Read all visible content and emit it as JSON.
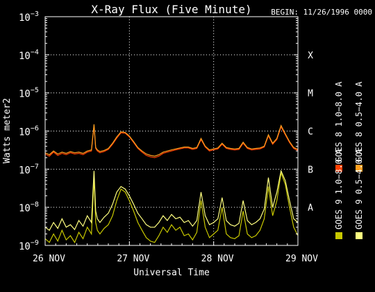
{
  "chart_data": {
    "type": "line",
    "title": "X-Ray Flux (Five Minute)",
    "begin_label": "BEGIN: 11/26/1996 0000",
    "xlabel": "Universal Time",
    "ylabel": "Watts meter2",
    "y_scale": "log",
    "ylim": [
      1e-09,
      0.001
    ],
    "xlim": [
      0,
      3
    ],
    "y_ticks": [
      {
        "mantissa": "10",
        "exp": "−3",
        "value": 0.001
      },
      {
        "mantissa": "10",
        "exp": "−4",
        "value": 0.0001
      },
      {
        "mantissa": "10",
        "exp": "−5",
        "value": 1e-05
      },
      {
        "mantissa": "10",
        "exp": "−6",
        "value": 1e-06
      },
      {
        "mantissa": "10",
        "exp": "−7",
        "value": 1e-07
      },
      {
        "mantissa": "10",
        "exp": "−8",
        "value": 1e-08
      },
      {
        "mantissa": "10",
        "exp": "−9",
        "value": 1e-09
      }
    ],
    "x_ticks": [
      {
        "label": "26 NOV",
        "value": 0
      },
      {
        "label": "27 NOV",
        "value": 1
      },
      {
        "label": "28 NOV",
        "value": 2
      },
      {
        "label": "29 NOV",
        "value": 3
      }
    ],
    "flare_classes": [
      {
        "label": "X",
        "value": 0.0001
      },
      {
        "label": "M",
        "value": 1e-05
      },
      {
        "label": "C",
        "value": 1e-06
      },
      {
        "label": "B",
        "value": 1e-07
      },
      {
        "label": "A",
        "value": 1e-08
      }
    ],
    "legend": [
      {
        "label": "GOES 8 1.0−8.0 A",
        "color": "#ff4000"
      },
      {
        "label": "GOES 8 0.5−4.0 A",
        "color": "#ffa020"
      },
      {
        "label": "GOES 9 1.0−8.0 A",
        "color": "#c8c800"
      },
      {
        "label": "GOES 9 0.5−4.0 A",
        "color": "#ffff80"
      }
    ],
    "grid": true,
    "series": [
      {
        "color": "#ff4000",
        "x": [
          0,
          0.05,
          0.1,
          0.15,
          0.2,
          0.25,
          0.3,
          0.35,
          0.4,
          0.45,
          0.5,
          0.55,
          0.58,
          0.6,
          0.62,
          0.65,
          0.7,
          0.75,
          0.8,
          0.85,
          0.9,
          0.95,
          1.0,
          1.05,
          1.1,
          1.15,
          1.2,
          1.25,
          1.3,
          1.35,
          1.4,
          1.45,
          1.5,
          1.55,
          1.6,
          1.65,
          1.7,
          1.75,
          1.8,
          1.85,
          1.9,
          1.95,
          2.0,
          2.05,
          2.1,
          2.15,
          2.2,
          2.25,
          2.3,
          2.35,
          2.4,
          2.45,
          2.5,
          2.55,
          2.6,
          2.65,
          2.7,
          2.75,
          2.8,
          2.85,
          2.9,
          2.95,
          3.0
        ],
        "y": [
          2.5e-07,
          2.2e-07,
          2.8e-07,
          2.3e-07,
          2.6e-07,
          2.4e-07,
          2.7e-07,
          2.5e-07,
          2.6e-07,
          2.4e-07,
          2.8e-07,
          3e-07,
          1.4e-06,
          3.5e-07,
          3e-07,
          2.7e-07,
          2.9e-07,
          3.3e-07,
          4.5e-07,
          6.5e-07,
          9e-07,
          8.8e-07,
          7e-07,
          5e-07,
          3.5e-07,
          2.8e-07,
          2.3e-07,
          2.1e-07,
          2e-07,
          2.2e-07,
          2.6e-07,
          2.8e-07,
          3e-07,
          3.2e-07,
          3.4e-07,
          3.6e-07,
          3.6e-07,
          3.3e-07,
          3.5e-07,
          6e-07,
          3.8e-07,
          3e-07,
          3.2e-07,
          3.4e-07,
          4.5e-07,
          3.5e-07,
          3.3e-07,
          3.2e-07,
          3.3e-07,
          4.8e-07,
          3.5e-07,
          3.2e-07,
          3.3e-07,
          3.4e-07,
          3.8e-07,
          7.5e-07,
          4.5e-07,
          6e-07,
          1.3e-06,
          8e-07,
          5e-07,
          3.5e-07,
          3.1e-07
        ]
      },
      {
        "color": "#ffa020",
        "x": [
          0,
          0.05,
          0.1,
          0.15,
          0.2,
          0.25,
          0.3,
          0.35,
          0.4,
          0.45,
          0.5,
          0.55,
          0.58,
          0.6,
          0.62,
          0.65,
          0.7,
          0.75,
          0.8,
          0.85,
          0.9,
          0.95,
          1.0,
          1.05,
          1.1,
          1.15,
          1.2,
          1.25,
          1.3,
          1.35,
          1.4,
          1.45,
          1.5,
          1.55,
          1.6,
          1.65,
          1.7,
          1.75,
          1.8,
          1.85,
          1.9,
          1.95,
          2.0,
          2.05,
          2.1,
          2.15,
          2.2,
          2.25,
          2.3,
          2.35,
          2.4,
          2.45,
          2.5,
          2.55,
          2.6,
          2.65,
          2.7,
          2.75,
          2.8,
          2.85,
          2.9,
          2.95,
          3.0
        ],
        "y": [
          2.7e-07,
          2.4e-07,
          3e-07,
          2.5e-07,
          2.8e-07,
          2.6e-07,
          2.9e-07,
          2.7e-07,
          2.8e-07,
          2.6e-07,
          3e-07,
          3.2e-07,
          1.5e-06,
          3.7e-07,
          3.2e-07,
          2.9e-07,
          3.1e-07,
          3.5e-07,
          4.8e-07,
          7e-07,
          9.5e-07,
          9.2e-07,
          7.4e-07,
          5.3e-07,
          3.7e-07,
          3e-07,
          2.5e-07,
          2.3e-07,
          2.2e-07,
          2.4e-07,
          2.8e-07,
          3e-07,
          3.2e-07,
          3.4e-07,
          3.6e-07,
          3.8e-07,
          3.8e-07,
          3.5e-07,
          3.7e-07,
          6.4e-07,
          4e-07,
          3.2e-07,
          3.4e-07,
          3.6e-07,
          4.8e-07,
          3.7e-07,
          3.5e-07,
          3.4e-07,
          3.5e-07,
          5.1e-07,
          3.7e-07,
          3.4e-07,
          3.5e-07,
          3.6e-07,
          4e-07,
          8e-07,
          4.8e-07,
          6.4e-07,
          1.4e-06,
          8.5e-07,
          5.3e-07,
          3.7e-07,
          3.3e-07
        ]
      },
      {
        "color": "#c8c800",
        "x": [
          0,
          0.05,
          0.1,
          0.15,
          0.2,
          0.25,
          0.3,
          0.35,
          0.4,
          0.45,
          0.5,
          0.55,
          0.58,
          0.6,
          0.62,
          0.65,
          0.7,
          0.75,
          0.8,
          0.85,
          0.9,
          0.95,
          1.0,
          1.05,
          1.1,
          1.15,
          1.2,
          1.25,
          1.3,
          1.35,
          1.4,
          1.45,
          1.5,
          1.55,
          1.6,
          1.65,
          1.7,
          1.75,
          1.8,
          1.85,
          1.9,
          1.95,
          2.0,
          2.05,
          2.1,
          2.15,
          2.2,
          2.25,
          2.3,
          2.35,
          2.4,
          2.45,
          2.5,
          2.55,
          2.6,
          2.65,
          2.7,
          2.75,
          2.8,
          2.85,
          2.9,
          2.95,
          3.0
        ],
        "y": [
          1.5e-09,
          1.2e-09,
          2e-09,
          1.3e-09,
          2.5e-09,
          1.4e-09,
          1.8e-09,
          1.2e-09,
          2.2e-09,
          1.5e-09,
          3e-09,
          2e-09,
          6e-08,
          4e-09,
          2.5e-09,
          2e-09,
          2.8e-09,
          3.5e-09,
          6e-09,
          1.5e-08,
          3e-08,
          2.5e-08,
          1.5e-08,
          8e-09,
          4e-09,
          2.5e-09,
          1.6e-09,
          1.3e-09,
          1.2e-09,
          1.8e-09,
          3e-09,
          2.2e-09,
          3.5e-09,
          2.5e-09,
          3e-09,
          1.8e-09,
          2e-09,
          1.4e-09,
          2.2e-09,
          1.5e-08,
          3e-09,
          1.6e-09,
          2e-09,
          2.5e-09,
          1e-08,
          2e-09,
          1.6e-09,
          1.5e-09,
          1.8e-09,
          8e-09,
          2e-09,
          1.6e-09,
          1.8e-09,
          2.5e-09,
          5e-09,
          3.5e-08,
          6e-09,
          1.5e-08,
          8e-08,
          4e-08,
          1e-08,
          3e-09,
          1.8e-09
        ]
      },
      {
        "color": "#ffff80",
        "x": [
          0,
          0.05,
          0.1,
          0.15,
          0.2,
          0.25,
          0.3,
          0.35,
          0.4,
          0.45,
          0.5,
          0.55,
          0.58,
          0.6,
          0.62,
          0.65,
          0.7,
          0.75,
          0.8,
          0.85,
          0.9,
          0.95,
          1.0,
          1.05,
          1.1,
          1.15,
          1.2,
          1.25,
          1.3,
          1.35,
          1.4,
          1.45,
          1.5,
          1.55,
          1.6,
          1.65,
          1.7,
          1.75,
          1.8,
          1.85,
          1.9,
          1.95,
          2.0,
          2.05,
          2.1,
          2.15,
          2.2,
          2.25,
          2.3,
          2.35,
          2.4,
          2.45,
          2.5,
          2.55,
          2.6,
          2.65,
          2.7,
          2.75,
          2.8,
          2.85,
          2.9,
          2.95,
          3.0
        ],
        "y": [
          3e-09,
          2.5e-09,
          4e-09,
          2.8e-09,
          5e-09,
          3e-09,
          3.5e-09,
          2.6e-09,
          4.5e-09,
          3.2e-09,
          6e-09,
          4e-09,
          9e-08,
          8e-09,
          5e-09,
          4e-09,
          5.5e-09,
          7e-09,
          1.2e-08,
          2.5e-08,
          3.5e-08,
          3e-08,
          2e-08,
          1.2e-08,
          7e-09,
          5e-09,
          3.5e-09,
          3e-09,
          3e-09,
          4e-09,
          6e-09,
          4.5e-09,
          6.5e-09,
          5e-09,
          5.5e-09,
          4e-09,
          4.5e-09,
          3.2e-09,
          4.5e-09,
          2.5e-08,
          6e-09,
          3.5e-09,
          4e-09,
          5e-09,
          1.8e-08,
          4.5e-09,
          3.5e-09,
          3.2e-09,
          3.8e-09,
          1.5e-08,
          4.5e-09,
          3.5e-09,
          4e-09,
          5e-09,
          9e-09,
          6e-08,
          1e-08,
          2.5e-08,
          9e-08,
          5e-08,
          1.5e-08,
          5e-09,
          4e-09
        ]
      }
    ]
  }
}
